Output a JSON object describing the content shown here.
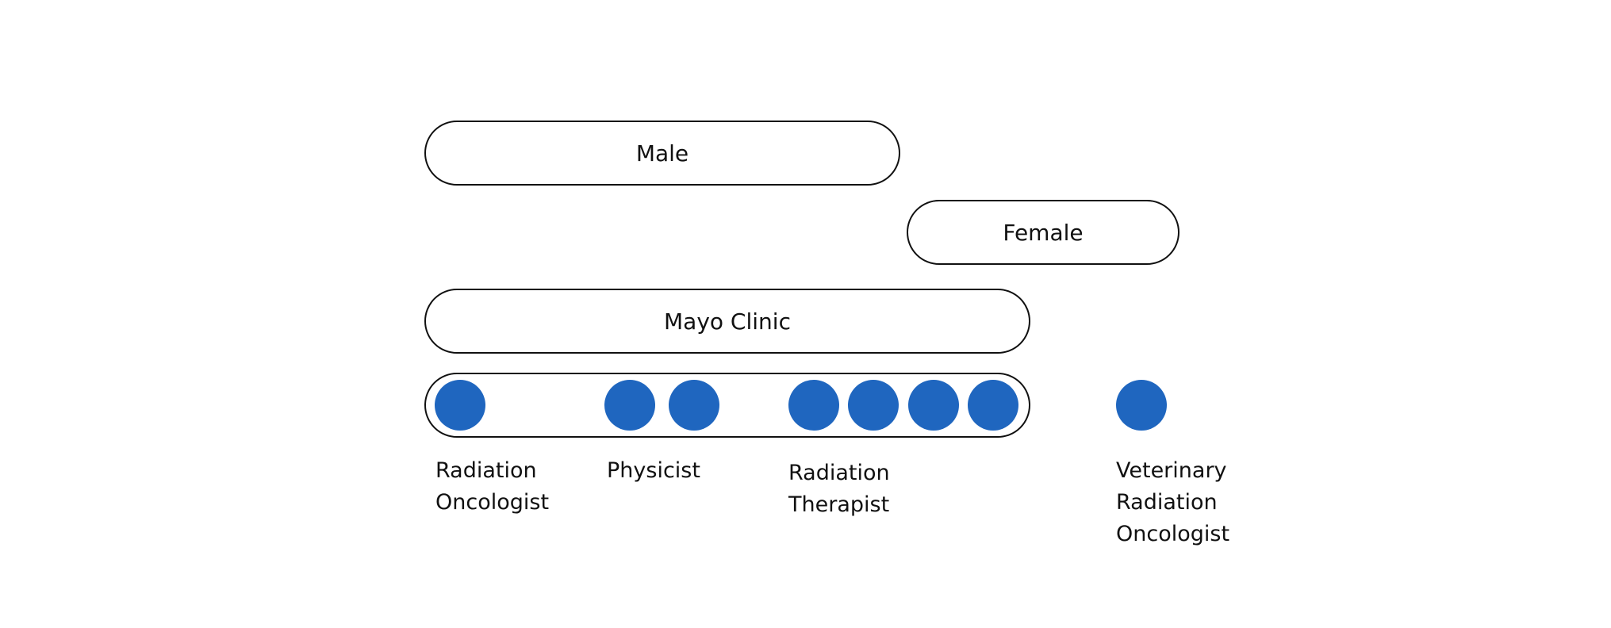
{
  "colors": {
    "dot": "#1f66bf",
    "outline": "#111111",
    "background": "#ffffff"
  },
  "groups": {
    "male": "Male",
    "female": "Female",
    "organization": "Mayo Clinic"
  },
  "roles": [
    {
      "lines": [
        "Radiation",
        "Oncologist"
      ],
      "count": 1
    },
    {
      "lines": [
        "Physicist"
      ],
      "count": 2
    },
    {
      "lines": [
        "Radiation",
        "Therapist"
      ],
      "count": 4
    },
    {
      "lines": [
        "Veterinary",
        "Radiation",
        "Oncologist"
      ],
      "count": 1
    }
  ]
}
